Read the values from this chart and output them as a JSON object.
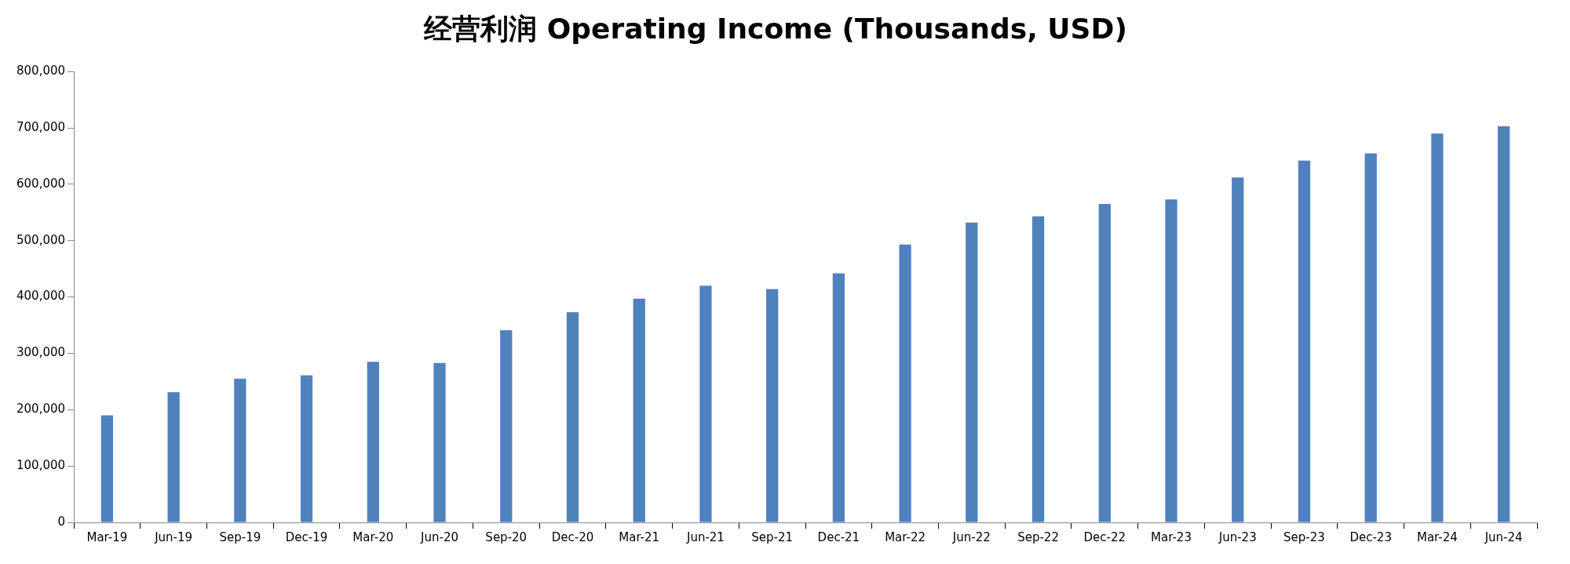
{
  "chart_data": {
    "type": "bar",
    "title": "经营利润 Operating Income (Thousands, USD)",
    "categories": [
      "Mar-19",
      "Jun-19",
      "Sep-19",
      "Dec-19",
      "Mar-20",
      "Jun-20",
      "Sep-20",
      "Dec-20",
      "Mar-21",
      "Jun-21",
      "Sep-21",
      "Dec-21",
      "Mar-22",
      "Jun-22",
      "Sep-22",
      "Dec-22",
      "Mar-23",
      "Jun-23",
      "Sep-23",
      "Dec-23",
      "Mar-24",
      "Jun-24"
    ],
    "values": [
      190000,
      231000,
      255000,
      261000,
      285000,
      283000,
      341000,
      373000,
      397000,
      420000,
      414000,
      442000,
      493000,
      532000,
      543000,
      565000,
      573000,
      612000,
      642000,
      655000,
      690000,
      703000
    ],
    "color": "#4f81bd",
    "ylim": [
      0,
      800000
    ],
    "yticks": [
      {
        "value": 0,
        "label": "0"
      },
      {
        "value": 100000,
        "label": "100,000"
      },
      {
        "value": 200000,
        "label": "200,000"
      },
      {
        "value": 300000,
        "label": "300,000"
      },
      {
        "value": 400000,
        "label": "400,000"
      },
      {
        "value": 500000,
        "label": "500,000"
      },
      {
        "value": 600000,
        "label": "600,000"
      },
      {
        "value": 700000,
        "label": "700,000"
      },
      {
        "value": 800000,
        "label": "800,000"
      }
    ]
  }
}
